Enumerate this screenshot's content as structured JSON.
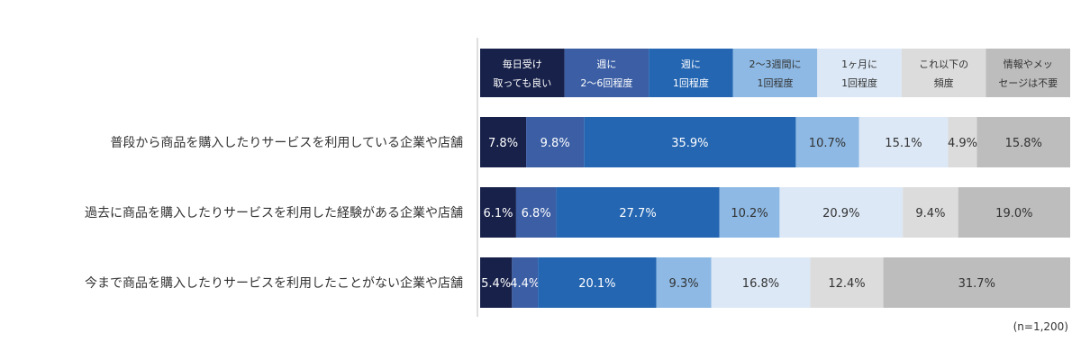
{
  "chart_data": {
    "type": "bar",
    "orientation": "horizontal",
    "stacked": true,
    "percent": true,
    "legend_position": "top",
    "categories": [
      "普段から商品を購入したりサービスを利用している企業や店舗",
      "過去に商品を購入したりサービスを利用した経験がある企業や店舗",
      "今まで商品を購入したりサービスを利用したことがない企業や店舗"
    ],
    "series": [
      {
        "name": "毎日受け\n取っても良い",
        "color": "#17214a",
        "label_color": "#ffffff",
        "values": [
          7.8,
          6.1,
          5.4
        ]
      },
      {
        "name": "週に\n2～6回程度",
        "color": "#3b5ea5",
        "label_color": "#ffffff",
        "values": [
          9.8,
          6.8,
          4.4
        ]
      },
      {
        "name": "週に\n1回程度",
        "color": "#2466b2",
        "label_color": "#ffffff",
        "values": [
          35.9,
          27.7,
          20.1
        ]
      },
      {
        "name": "2～3週間に\n1回程度",
        "color": "#8db9e4",
        "label_color": "#333333",
        "values": [
          10.7,
          10.2,
          9.3
        ]
      },
      {
        "name": "1ヶ月に\n1回程度",
        "color": "#dce8f6",
        "label_color": "#333333",
        "values": [
          15.1,
          20.9,
          16.8
        ]
      },
      {
        "name": "これ以下の\n頻度",
        "color": "#dcdcdc",
        "label_color": "#333333",
        "values": [
          4.9,
          9.4,
          12.4
        ]
      },
      {
        "name": "情報やメッ\nセージは不要",
        "color": "#bdbdbd",
        "label_color": "#333333",
        "values": [
          15.8,
          19.0,
          31.7
        ]
      }
    ],
    "value_suffix": "%",
    "note": "(n=1,200)"
  }
}
